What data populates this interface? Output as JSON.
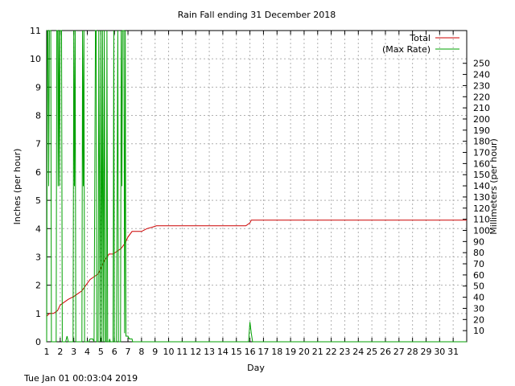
{
  "chart_data": {
    "type": "line",
    "title": "Rain Fall ending 31 December 2018",
    "xlabel": "Day",
    "ylabel": "Inches (per hour)",
    "y2label": "Millimeters (per hour)",
    "xlim": [
      1,
      32
    ],
    "ylim": [
      0,
      11
    ],
    "y2lim": [
      0,
      279.4
    ],
    "x_ticks": [
      1,
      2,
      3,
      4,
      5,
      6,
      7,
      8,
      9,
      10,
      11,
      12,
      13,
      14,
      15,
      16,
      17,
      18,
      19,
      20,
      21,
      22,
      23,
      24,
      25,
      26,
      27,
      28,
      29,
      30,
      31
    ],
    "y_ticks": [
      0,
      1,
      2,
      3,
      4,
      5,
      6,
      7,
      8,
      9,
      10,
      11
    ],
    "y2_ticks": [
      10,
      20,
      30,
      40,
      50,
      60,
      70,
      80,
      90,
      100,
      110,
      120,
      130,
      140,
      150,
      160,
      170,
      180,
      190,
      200,
      210,
      220,
      230,
      240,
      250
    ],
    "grid": true,
    "legend_position": "top-right",
    "series": [
      {
        "name": "Total",
        "color": "#cc0000",
        "points": [
          [
            1,
            0.9
          ],
          [
            1.2,
            1.0
          ],
          [
            1.5,
            1.0
          ],
          [
            1.8,
            1.1
          ],
          [
            2,
            1.3
          ],
          [
            2.3,
            1.4
          ],
          [
            2.6,
            1.5
          ],
          [
            3,
            1.6
          ],
          [
            3.3,
            1.7
          ],
          [
            3.6,
            1.8
          ],
          [
            3.9,
            2.0
          ],
          [
            4.2,
            2.2
          ],
          [
            4.5,
            2.3
          ],
          [
            4.8,
            2.4
          ],
          [
            5,
            2.6
          ],
          [
            5.3,
            2.9
          ],
          [
            5.6,
            3.1
          ],
          [
            5.9,
            3.1
          ],
          [
            6.2,
            3.2
          ],
          [
            6.5,
            3.3
          ],
          [
            6.8,
            3.5
          ],
          [
            7,
            3.7
          ],
          [
            7.3,
            3.9
          ],
          [
            7.6,
            3.9
          ],
          [
            8,
            3.9
          ],
          [
            8.4,
            4.0
          ],
          [
            8.8,
            4.05
          ],
          [
            9.1,
            4.1
          ],
          [
            10,
            4.1
          ],
          [
            12,
            4.1
          ],
          [
            14,
            4.1
          ],
          [
            15.7,
            4.1
          ],
          [
            16,
            4.2
          ],
          [
            16.1,
            4.3
          ],
          [
            18,
            4.3
          ],
          [
            20,
            4.3
          ],
          [
            22,
            4.3
          ],
          [
            24,
            4.3
          ],
          [
            26,
            4.3
          ],
          [
            28,
            4.3
          ],
          [
            30,
            4.3
          ],
          [
            32,
            4.3
          ]
        ]
      },
      {
        "name": "(Max Rate)",
        "color": "#00a000",
        "points": [
          [
            1,
            0
          ],
          [
            1.05,
            11
          ],
          [
            1.1,
            11
          ],
          [
            1.15,
            5.5
          ],
          [
            1.2,
            11
          ],
          [
            1.3,
            11
          ],
          [
            1.35,
            0
          ],
          [
            1.7,
            0
          ],
          [
            1.75,
            11
          ],
          [
            1.82,
            11
          ],
          [
            1.85,
            5.5
          ],
          [
            1.9,
            11
          ],
          [
            1.95,
            5.5
          ],
          [
            2,
            11
          ],
          [
            2.1,
            11
          ],
          [
            2.15,
            0
          ],
          [
            2.4,
            0
          ],
          [
            2.5,
            0.2
          ],
          [
            2.6,
            0
          ],
          [
            2.95,
            0
          ],
          [
            3,
            11
          ],
          [
            3.05,
            5.5
          ],
          [
            3.1,
            11
          ],
          [
            3.15,
            0
          ],
          [
            3.6,
            0
          ],
          [
            3.65,
            11
          ],
          [
            3.7,
            5.5
          ],
          [
            3.75,
            11
          ],
          [
            3.8,
            0
          ],
          [
            4.1,
            0
          ],
          [
            4.2,
            0.1
          ],
          [
            4.4,
            0.1
          ],
          [
            4.5,
            0
          ],
          [
            4.6,
            11
          ],
          [
            4.65,
            11
          ],
          [
            4.7,
            0
          ],
          [
            4.8,
            0
          ],
          [
            4.85,
            11
          ],
          [
            4.95,
            0
          ],
          [
            5,
            11
          ],
          [
            5.08,
            0
          ],
          [
            5.12,
            11
          ],
          [
            5.2,
            0
          ],
          [
            5.25,
            11
          ],
          [
            5.33,
            0
          ],
          [
            5.4,
            0
          ],
          [
            5.45,
            11
          ],
          [
            5.5,
            0
          ],
          [
            5.6,
            0
          ],
          [
            5.65,
            0.1
          ],
          [
            5.7,
            0
          ],
          [
            5.9,
            0
          ],
          [
            5.95,
            11
          ],
          [
            6.0,
            0
          ],
          [
            6.15,
            0
          ],
          [
            6.25,
            11
          ],
          [
            6.3,
            0
          ],
          [
            6.45,
            0
          ],
          [
            6.5,
            11
          ],
          [
            6.55,
            5.5
          ],
          [
            6.6,
            11
          ],
          [
            6.7,
            11
          ],
          [
            6.75,
            0.3
          ],
          [
            6.8,
            11
          ],
          [
            6.85,
            0.2
          ],
          [
            7,
            0.2
          ],
          [
            7.1,
            0.1
          ],
          [
            7.3,
            0.1
          ],
          [
            7.35,
            0
          ],
          [
            15.9,
            0
          ],
          [
            16,
            0.7
          ],
          [
            16.1,
            0.3
          ],
          [
            16.2,
            0
          ],
          [
            32,
            0
          ]
        ]
      }
    ]
  },
  "footer_timestamp": "Tue Jan 01 00:03:04 2019"
}
